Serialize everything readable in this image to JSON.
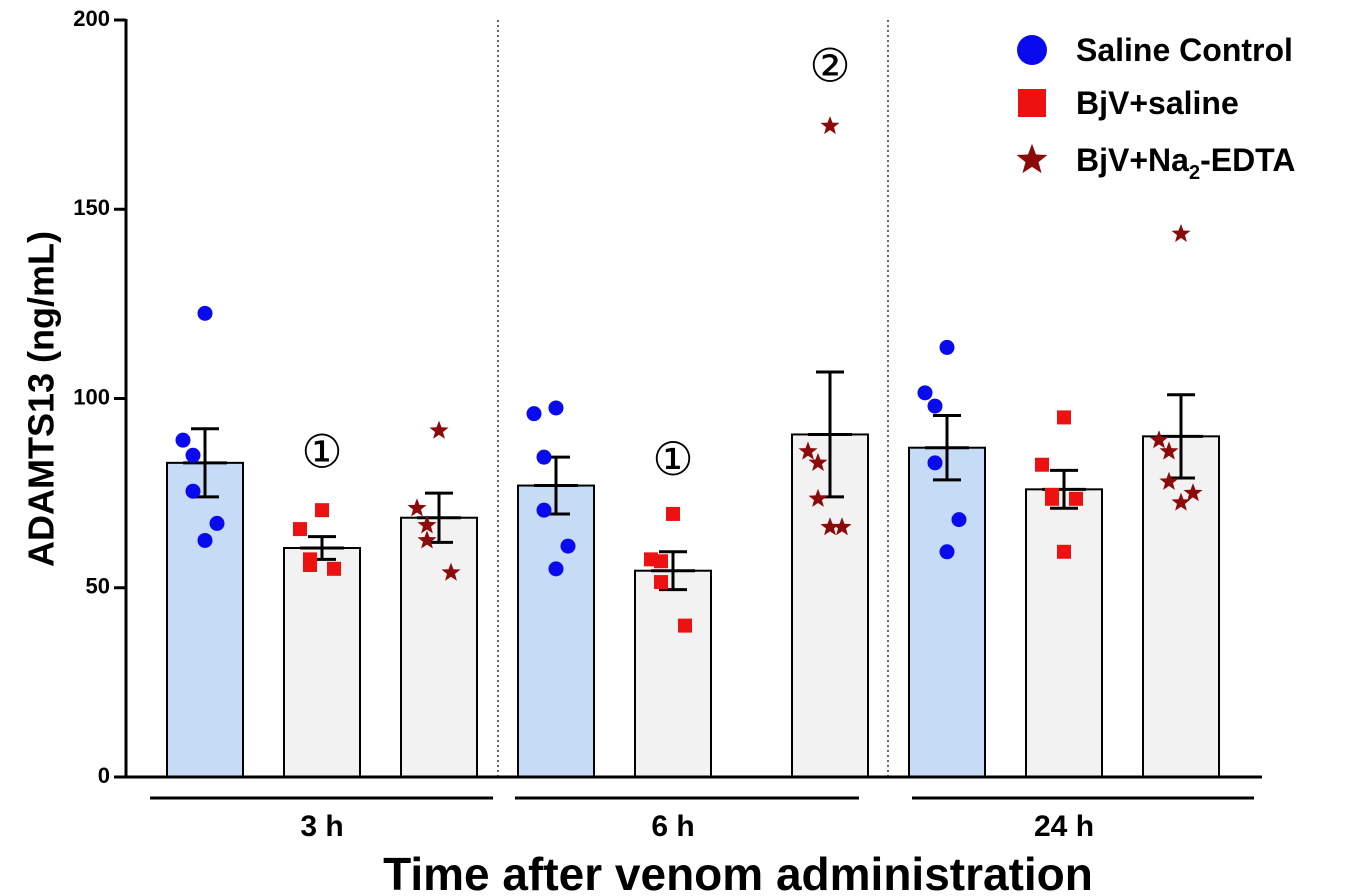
{
  "chart_data": {
    "type": "bar",
    "ylabel": "ADAMTS13 (ng/mL)",
    "xlabel": "Time after venom administration",
    "ylim": [
      0,
      200
    ],
    "yticks": [
      0,
      50,
      100,
      150,
      200
    ],
    "groups": [
      "3 h",
      "6 h",
      "24 h"
    ],
    "legend_position": "top-right",
    "series": [
      {
        "name": "Saline Control",
        "marker": "circle",
        "marker_color": "#0a0aee",
        "bar_color": "#c6dcf6",
        "means": [
          83,
          77,
          87
        ],
        "sem": [
          9,
          7.5,
          8.5
        ],
        "points": [
          [
            122.5,
            89,
            85,
            75.5,
            67,
            62.5
          ],
          [
            97.5,
            96,
            84.5,
            70.5,
            61,
            55
          ],
          [
            113.5,
            101.5,
            98,
            83,
            68,
            59.5
          ]
        ]
      },
      {
        "name": "BjV+saline",
        "marker": "square",
        "marker_color": "#ee1111",
        "bar_color": "#f2f2f2",
        "means": [
          60.5,
          54.5,
          76
        ],
        "sem": [
          3,
          5,
          5
        ],
        "points": [
          [
            70.5,
            65.5,
            57.5,
            56,
            55
          ],
          [
            69.5,
            57.5,
            57,
            51.5,
            40
          ],
          [
            95,
            82.5,
            74.5,
            73.5,
            73.5,
            59.5
          ]
        ]
      },
      {
        "name": "BjV+Na2-EDTA",
        "legend_parts": [
          "BjV+Na",
          "2",
          "-EDTA"
        ],
        "marker": "star",
        "marker_color": "#8b0a0a",
        "bar_color": "#f2f2f2",
        "means": [
          68.5,
          90.5,
          90
        ],
        "sem": [
          6.5,
          16.5,
          11
        ],
        "points": [
          [
            91.5,
            71,
            66.5,
            62.5,
            54
          ],
          [
            172,
            86,
            83,
            73.5,
            66,
            66
          ],
          [
            143.5,
            89,
            86,
            78,
            75,
            72.5
          ]
        ]
      }
    ],
    "annotations": [
      {
        "text": "①",
        "group": 0,
        "series": 1,
        "y": 85
      },
      {
        "text": "①",
        "group": 1,
        "series": 1,
        "y": 83
      },
      {
        "text": "②",
        "group": 1,
        "series": 2,
        "y": 187
      }
    ]
  }
}
